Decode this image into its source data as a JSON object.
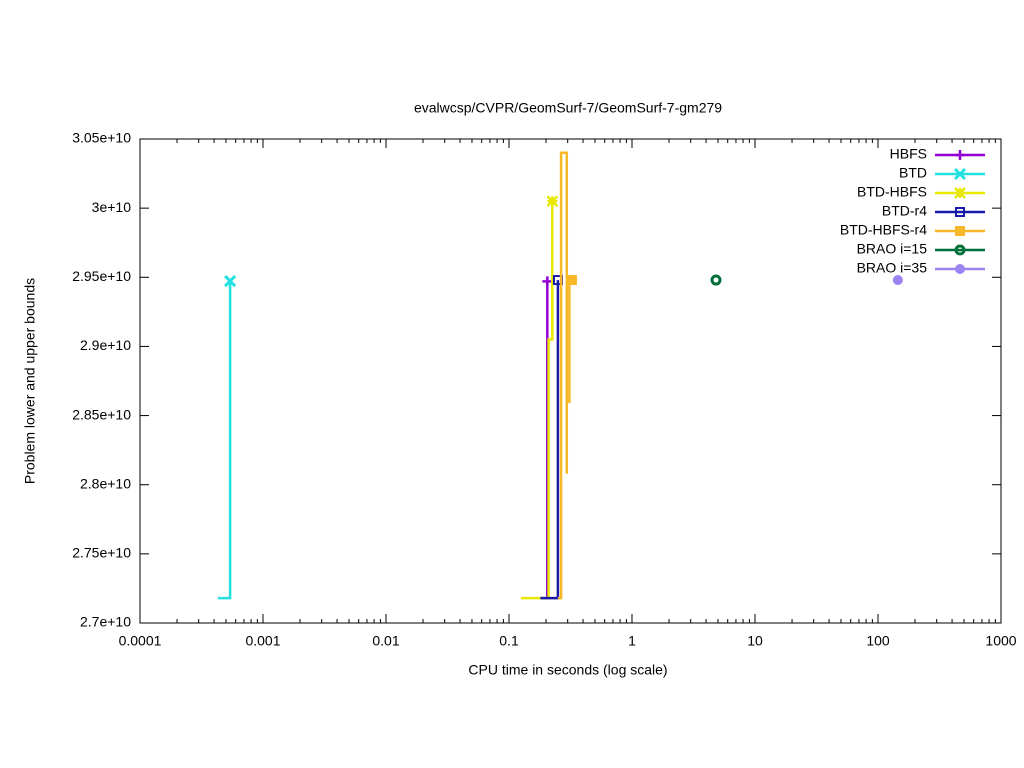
{
  "chart_data": {
    "type": "step",
    "title": "evalwcsp/CVPR/GeomSurf-7/GeomSurf-7-gm279",
    "x_label": "CPU time in seconds (log scale)",
    "y_label": "Problem lower and upper bounds",
    "xscale": "log",
    "xlim": [
      0.0001,
      1000
    ],
    "xticks": [
      0.0001,
      0.001,
      0.01,
      0.1,
      1,
      10,
      100,
      1000
    ],
    "ylim": [
      27000000000,
      30500000000
    ],
    "yticks": [
      {
        "value": 27000000000,
        "label": "2.7e+10"
      },
      {
        "value": 27500000000,
        "label": "2.75e+10"
      },
      {
        "value": 28000000000,
        "label": "2.8e+10"
      },
      {
        "value": 28500000000,
        "label": "2.85e+10"
      },
      {
        "value": 29000000000,
        "label": "2.9e+10"
      },
      {
        "value": 29500000000,
        "label": "2.95e+10"
      },
      {
        "value": 30000000000,
        "label": "3e+10"
      },
      {
        "value": 30500000000,
        "label": "3.05e+10"
      }
    ],
    "legend": "upper right",
    "series": [
      {
        "name": "HBFS",
        "color": "#9400d3",
        "x": [
          0.18,
          0.205,
          0.205
        ],
        "values": [
          27180000000,
          27180000000,
          29470000000
        ]
      },
      {
        "name": "BTD",
        "color": "#22e0e0",
        "x": [
          0.00043,
          0.00054,
          0.00054
        ],
        "values": [
          27180000000,
          27180000000,
          29473000000
        ]
      },
      {
        "name": "BTD-HBFS",
        "color": "#e8e800",
        "x": [
          0.125,
          0.21,
          0.21,
          0.225,
          0.225
        ],
        "values": [
          27180000000,
          27180000000,
          29050000000,
          29050000000,
          30050000000
        ]
      },
      {
        "name": "BTD-r4",
        "color": "#1a1aa8",
        "x": [
          0.18,
          0.25,
          0.25
        ],
        "values": [
          27180000000,
          27180000000,
          29480000000
        ]
      },
      {
        "name": "BTD-HBFS-r4",
        "color": "#f8b828",
        "x": [
          0.25,
          0.265,
          0.265,
          0.295,
          0.295,
          0.295,
          0.31,
          0.31,
          0.325
        ],
        "values": [
          27180000000,
          27180000000,
          30400000000,
          30400000000,
          28080000000,
          28600000000,
          28600000000,
          29480000000,
          29480000000
        ]
      },
      {
        "name": "BRAO i=15",
        "color": "#006f3c",
        "x": [
          4.82
        ],
        "values": [
          29480000000
        ]
      },
      {
        "name": "BRAO i=35",
        "color": "#9b84f0",
        "x": [
          145
        ],
        "values": [
          29480000000
        ]
      }
    ]
  }
}
